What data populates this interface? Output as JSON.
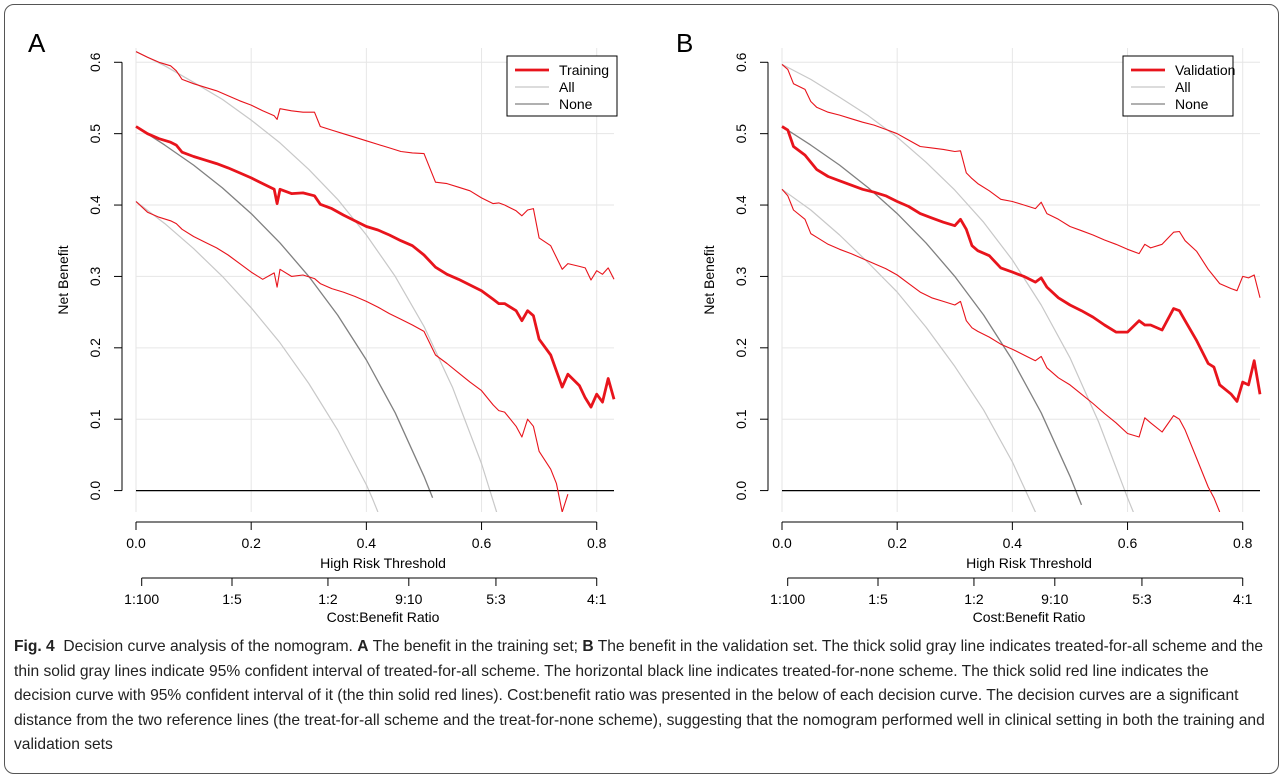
{
  "caption": {
    "fig_label": "Fig. 4",
    "intro": "Decision curve analysis of the nomogram.",
    "a_label": "A",
    "a_text": "The benefit in the training set;",
    "b_label": "B",
    "rest": "The benefit in the validation set. The thick solid gray line indicates treated-for-all scheme and the thin solid gray lines indicate 95% confident interval of treated-for-all scheme. The horizontal black line indicates treated-for-none scheme. The thick solid red line indicates the decision curve with 95% confident interval of it (the thin solid red lines). Cost:benefit ratio was presented in the below of each decision curve. The decision curves are a significant distance from the two reference lines (the treat-for-all scheme and the treat-for-none scheme), suggesting that the nomogram performed well in clinical setting in both the training and validation sets"
  },
  "colors": {
    "red": "#e8141c",
    "gray_light": "#c8c8c8",
    "gray_dark": "#808080",
    "black": "#000000",
    "grid": "#e6e6e6"
  },
  "chart_data": [
    {
      "type": "line",
      "panel_label": "A",
      "xlabel": "High Risk Threshold",
      "ylabel": "Net Benefit",
      "xlim": [
        0,
        0.83
      ],
      "ylim": [
        -0.03,
        0.62
      ],
      "x_ticks": [
        "0.0",
        "0.2",
        "0.4",
        "0.6",
        "0.8"
      ],
      "y_ticks": [
        "0.0",
        "0.1",
        "0.2",
        "0.3",
        "0.4",
        "0.5",
        "0.6"
      ],
      "grid": true,
      "legend_position": "top-right",
      "legend": [
        "Training",
        "All",
        "None"
      ],
      "cost_benefit_label": "Cost:Benefit Ratio",
      "cost_benefit_ticks": [
        "1:100",
        "1:5",
        "1:2",
        "9:10",
        "5:3",
        "4:1"
      ],
      "series": [
        {
          "name": "Training",
          "role": "main",
          "x": [
            0,
            0.02,
            0.04,
            0.06,
            0.07,
            0.08,
            0.1,
            0.12,
            0.14,
            0.16,
            0.18,
            0.2,
            0.22,
            0.24,
            0.245,
            0.25,
            0.27,
            0.29,
            0.31,
            0.32,
            0.34,
            0.36,
            0.38,
            0.4,
            0.42,
            0.44,
            0.46,
            0.48,
            0.5,
            0.52,
            0.54,
            0.56,
            0.58,
            0.6,
            0.62,
            0.63,
            0.64,
            0.66,
            0.67,
            0.68,
            0.69,
            0.7,
            0.72,
            0.74,
            0.75,
            0.77,
            0.78,
            0.79,
            0.8,
            0.81,
            0.82,
            0.83
          ],
          "y": [
            0.51,
            0.5,
            0.493,
            0.488,
            0.484,
            0.474,
            0.468,
            0.463,
            0.458,
            0.452,
            0.445,
            0.438,
            0.43,
            0.422,
            0.402,
            0.422,
            0.416,
            0.417,
            0.413,
            0.401,
            0.395,
            0.386,
            0.378,
            0.37,
            0.365,
            0.358,
            0.35,
            0.343,
            0.33,
            0.313,
            0.303,
            0.296,
            0.288,
            0.28,
            0.268,
            0.262,
            0.262,
            0.252,
            0.238,
            0.252,
            0.245,
            0.212,
            0.19,
            0.145,
            0.163,
            0.147,
            0.13,
            0.117,
            0.135,
            0.124,
            0.157,
            0.128
          ]
        },
        {
          "name": "",
          "role": "upper",
          "x": [
            0,
            0.02,
            0.04,
            0.06,
            0.07,
            0.08,
            0.1,
            0.12,
            0.14,
            0.16,
            0.18,
            0.2,
            0.22,
            0.24,
            0.245,
            0.25,
            0.27,
            0.29,
            0.31,
            0.32,
            0.34,
            0.36,
            0.38,
            0.4,
            0.42,
            0.44,
            0.46,
            0.48,
            0.5,
            0.52,
            0.54,
            0.56,
            0.58,
            0.6,
            0.62,
            0.63,
            0.64,
            0.66,
            0.67,
            0.68,
            0.69,
            0.7,
            0.72,
            0.74,
            0.75,
            0.77,
            0.78,
            0.79,
            0.8,
            0.81,
            0.82,
            0.83
          ],
          "y": [
            0.615,
            0.607,
            0.6,
            0.595,
            0.588,
            0.576,
            0.57,
            0.565,
            0.56,
            0.553,
            0.546,
            0.54,
            0.532,
            0.525,
            0.52,
            0.535,
            0.532,
            0.53,
            0.53,
            0.51,
            0.505,
            0.5,
            0.495,
            0.49,
            0.485,
            0.48,
            0.475,
            0.473,
            0.472,
            0.432,
            0.43,
            0.425,
            0.42,
            0.41,
            0.402,
            0.403,
            0.4,
            0.392,
            0.385,
            0.393,
            0.395,
            0.354,
            0.343,
            0.31,
            0.318,
            0.314,
            0.312,
            0.295,
            0.308,
            0.303,
            0.312,
            0.296
          ]
        },
        {
          "name": "",
          "role": "lower",
          "x": [
            0,
            0.02,
            0.04,
            0.06,
            0.07,
            0.08,
            0.1,
            0.12,
            0.14,
            0.16,
            0.18,
            0.2,
            0.22,
            0.24,
            0.245,
            0.25,
            0.27,
            0.29,
            0.31,
            0.32,
            0.34,
            0.36,
            0.38,
            0.4,
            0.42,
            0.44,
            0.46,
            0.48,
            0.5,
            0.52,
            0.54,
            0.56,
            0.58,
            0.6,
            0.62,
            0.63,
            0.64,
            0.66,
            0.67,
            0.68,
            0.69,
            0.7,
            0.72,
            0.73,
            0.74,
            0.75
          ],
          "y": [
            0.405,
            0.39,
            0.383,
            0.378,
            0.374,
            0.366,
            0.356,
            0.348,
            0.34,
            0.33,
            0.318,
            0.306,
            0.296,
            0.305,
            0.285,
            0.31,
            0.3,
            0.302,
            0.297,
            0.29,
            0.283,
            0.278,
            0.272,
            0.265,
            0.257,
            0.248,
            0.24,
            0.232,
            0.223,
            0.19,
            0.178,
            0.165,
            0.152,
            0.14,
            0.12,
            0.112,
            0.11,
            0.09,
            0.075,
            0.1,
            0.09,
            0.055,
            0.03,
            0.01,
            -0.03,
            -0.005
          ]
        },
        {
          "name": "",
          "role": "all",
          "x": [
            0,
            0.05,
            0.1,
            0.15,
            0.2,
            0.25,
            0.3,
            0.35,
            0.4,
            0.45,
            0.5,
            0.515
          ],
          "y": [
            0.51,
            0.484,
            0.456,
            0.424,
            0.388,
            0.347,
            0.3,
            0.246,
            0.183,
            0.109,
            0.02,
            -0.01
          ]
        },
        {
          "name": "",
          "role": "all-ci",
          "x": [
            0,
            0.05,
            0.1,
            0.15,
            0.2,
            0.25,
            0.3,
            0.35,
            0.4,
            0.45,
            0.5,
            0.55,
            0.6,
            0.63
          ],
          "y": [
            0.615,
            0.595,
            0.572,
            0.548,
            0.519,
            0.487,
            0.45,
            0.408,
            0.358,
            0.3,
            0.23,
            0.144,
            0.038,
            -0.04
          ]
        },
        {
          "name": "",
          "role": "all-ci",
          "x": [
            0,
            0.05,
            0.1,
            0.15,
            0.2,
            0.25,
            0.3,
            0.35,
            0.4,
            0.41,
            0.42
          ],
          "y": [
            0.405,
            0.374,
            0.339,
            0.3,
            0.256,
            0.207,
            0.15,
            0.085,
            0.008,
            -0.01,
            -0.03
          ]
        },
        {
          "name": "",
          "role": "none",
          "x": [
            0,
            0.83
          ],
          "y": [
            0,
            0
          ]
        }
      ]
    },
    {
      "type": "line",
      "panel_label": "B",
      "xlabel": "High Risk Threshold",
      "ylabel": "Net Benefit",
      "xlim": [
        0,
        0.83
      ],
      "ylim": [
        -0.03,
        0.62
      ],
      "x_ticks": [
        "0.0",
        "0.2",
        "0.4",
        "0.6",
        "0.8"
      ],
      "y_ticks": [
        "0.0",
        "0.1",
        "0.2",
        "0.3",
        "0.4",
        "0.5",
        "0.6"
      ],
      "grid": true,
      "legend_position": "top-right",
      "legend": [
        "Validation",
        "All",
        "None"
      ],
      "cost_benefit_label": "Cost:Benefit Ratio",
      "cost_benefit_ticks": [
        "1:100",
        "1:5",
        "1:2",
        "9:10",
        "5:3",
        "4:1"
      ],
      "series": [
        {
          "name": "Validation",
          "role": "main",
          "x": [
            0,
            0.01,
            0.02,
            0.04,
            0.05,
            0.06,
            0.08,
            0.1,
            0.12,
            0.14,
            0.16,
            0.18,
            0.2,
            0.22,
            0.24,
            0.26,
            0.28,
            0.3,
            0.31,
            0.32,
            0.33,
            0.34,
            0.36,
            0.38,
            0.4,
            0.42,
            0.44,
            0.45,
            0.46,
            0.48,
            0.5,
            0.52,
            0.54,
            0.56,
            0.58,
            0.6,
            0.62,
            0.63,
            0.64,
            0.66,
            0.68,
            0.69,
            0.7,
            0.72,
            0.74,
            0.75,
            0.76,
            0.78,
            0.79,
            0.8,
            0.81,
            0.82,
            0.83
          ],
          "y": [
            0.51,
            0.505,
            0.482,
            0.47,
            0.46,
            0.45,
            0.44,
            0.434,
            0.428,
            0.422,
            0.418,
            0.413,
            0.405,
            0.398,
            0.388,
            0.382,
            0.376,
            0.371,
            0.38,
            0.366,
            0.343,
            0.336,
            0.329,
            0.312,
            0.306,
            0.3,
            0.292,
            0.298,
            0.285,
            0.27,
            0.26,
            0.252,
            0.243,
            0.232,
            0.222,
            0.222,
            0.238,
            0.232,
            0.232,
            0.225,
            0.255,
            0.252,
            0.238,
            0.21,
            0.178,
            0.173,
            0.148,
            0.135,
            0.125,
            0.152,
            0.148,
            0.182,
            0.135
          ]
        },
        {
          "name": "",
          "role": "upper",
          "x": [
            0,
            0.01,
            0.02,
            0.04,
            0.05,
            0.06,
            0.08,
            0.1,
            0.12,
            0.14,
            0.16,
            0.18,
            0.2,
            0.22,
            0.24,
            0.26,
            0.28,
            0.3,
            0.31,
            0.32,
            0.33,
            0.34,
            0.36,
            0.38,
            0.4,
            0.42,
            0.44,
            0.45,
            0.46,
            0.48,
            0.5,
            0.52,
            0.54,
            0.56,
            0.58,
            0.6,
            0.62,
            0.63,
            0.64,
            0.66,
            0.68,
            0.69,
            0.7,
            0.72,
            0.74,
            0.75,
            0.76,
            0.78,
            0.79,
            0.8,
            0.81,
            0.82,
            0.83
          ],
          "y": [
            0.597,
            0.59,
            0.57,
            0.562,
            0.545,
            0.537,
            0.53,
            0.526,
            0.521,
            0.516,
            0.512,
            0.506,
            0.5,
            0.491,
            0.482,
            0.48,
            0.478,
            0.475,
            0.476,
            0.445,
            0.437,
            0.43,
            0.42,
            0.408,
            0.405,
            0.4,
            0.395,
            0.404,
            0.388,
            0.38,
            0.37,
            0.364,
            0.358,
            0.351,
            0.345,
            0.338,
            0.332,
            0.345,
            0.34,
            0.345,
            0.362,
            0.363,
            0.35,
            0.335,
            0.31,
            0.3,
            0.29,
            0.283,
            0.28,
            0.3,
            0.298,
            0.302,
            0.27
          ]
        },
        {
          "name": "",
          "role": "lower",
          "x": [
            0,
            0.01,
            0.02,
            0.04,
            0.05,
            0.06,
            0.08,
            0.1,
            0.12,
            0.14,
            0.16,
            0.18,
            0.2,
            0.22,
            0.24,
            0.26,
            0.28,
            0.3,
            0.31,
            0.32,
            0.33,
            0.34,
            0.36,
            0.38,
            0.4,
            0.42,
            0.44,
            0.45,
            0.46,
            0.48,
            0.5,
            0.52,
            0.54,
            0.56,
            0.58,
            0.6,
            0.62,
            0.63,
            0.64,
            0.66,
            0.68,
            0.69,
            0.7,
            0.72,
            0.74,
            0.75,
            0.76
          ],
          "y": [
            0.422,
            0.413,
            0.393,
            0.38,
            0.36,
            0.355,
            0.345,
            0.338,
            0.332,
            0.325,
            0.318,
            0.311,
            0.302,
            0.29,
            0.278,
            0.27,
            0.265,
            0.26,
            0.265,
            0.238,
            0.228,
            0.223,
            0.215,
            0.205,
            0.198,
            0.19,
            0.182,
            0.188,
            0.172,
            0.158,
            0.148,
            0.135,
            0.122,
            0.108,
            0.095,
            0.08,
            0.075,
            0.102,
            0.095,
            0.082,
            0.105,
            0.1,
            0.085,
            0.045,
            0.005,
            -0.01,
            -0.03
          ]
        },
        {
          "name": "",
          "role": "all",
          "x": [
            0,
            0.05,
            0.1,
            0.15,
            0.2,
            0.25,
            0.3,
            0.35,
            0.4,
            0.45,
            0.5,
            0.52
          ],
          "y": [
            0.51,
            0.484,
            0.456,
            0.424,
            0.388,
            0.347,
            0.3,
            0.246,
            0.183,
            0.109,
            0.02,
            -0.02
          ]
        },
        {
          "name": "",
          "role": "all-ci",
          "x": [
            0,
            0.05,
            0.1,
            0.15,
            0.2,
            0.25,
            0.3,
            0.35,
            0.4,
            0.45,
            0.5,
            0.55,
            0.6,
            0.62
          ],
          "y": [
            0.597,
            0.576,
            0.551,
            0.525,
            0.495,
            0.46,
            0.421,
            0.376,
            0.323,
            0.26,
            0.186,
            0.096,
            -0.01,
            -0.05
          ]
        },
        {
          "name": "",
          "role": "all-ci",
          "x": [
            0,
            0.05,
            0.1,
            0.15,
            0.2,
            0.25,
            0.3,
            0.35,
            0.4,
            0.44,
            0.45
          ],
          "y": [
            0.422,
            0.393,
            0.358,
            0.319,
            0.278,
            0.229,
            0.174,
            0.113,
            0.04,
            -0.03,
            -0.04
          ]
        },
        {
          "name": "",
          "role": "none",
          "x": [
            0,
            0.83
          ],
          "y": [
            0,
            0
          ]
        }
      ]
    }
  ]
}
